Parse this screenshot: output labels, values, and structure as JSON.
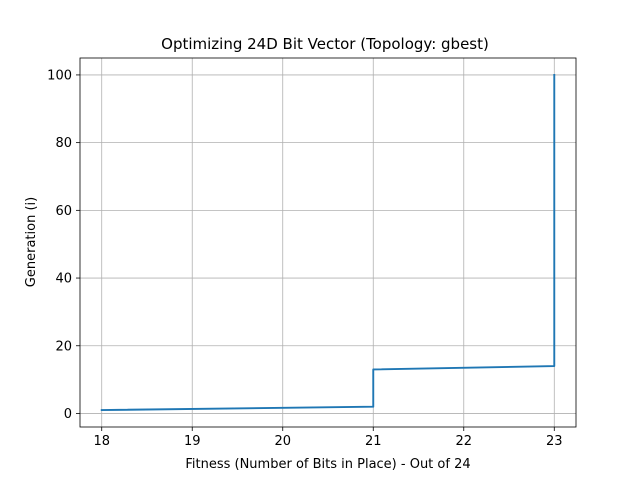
{
  "chart_data": {
    "type": "line",
    "title": "Optimizing 24D Bit Vector (Topology: gbest)",
    "xlabel": "Fitness (Number of Bits in Place) - Out of 24",
    "ylabel": "Generation (i)",
    "xlim": [
      17.76,
      23.24
    ],
    "ylim": [
      -4,
      105
    ],
    "xticks": [
      18,
      19,
      20,
      21,
      22,
      23
    ],
    "yticks": [
      0,
      20,
      40,
      60,
      80,
      100
    ],
    "grid": true,
    "series": [
      {
        "color": "#1f77b4",
        "x": [
          18,
          21,
          21,
          23,
          23
        ],
        "y": [
          1,
          2,
          13,
          14,
          100
        ]
      }
    ]
  }
}
